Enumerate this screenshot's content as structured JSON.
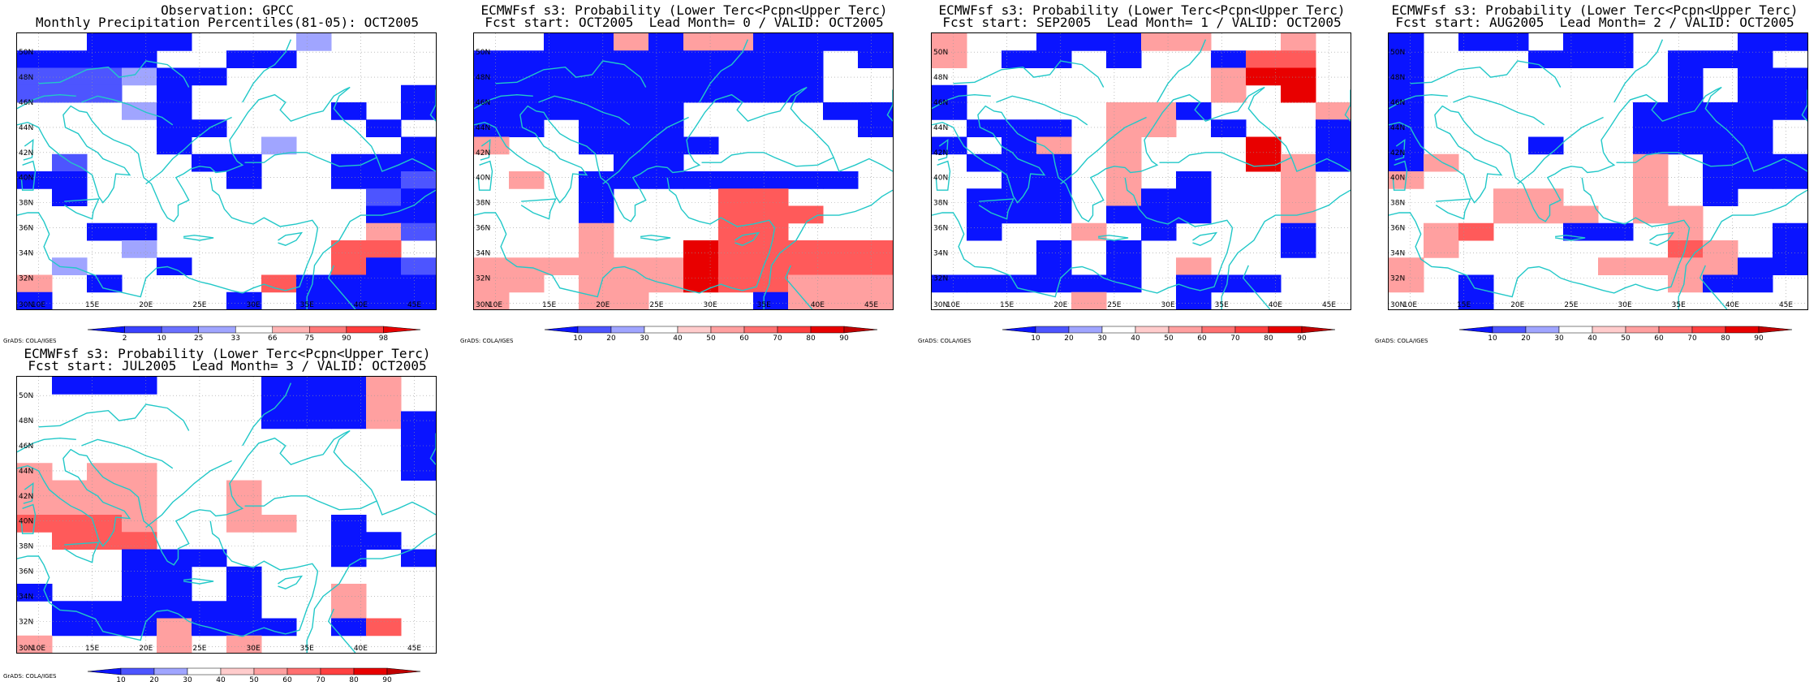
{
  "colors": {
    "coast": "#22c8c8",
    "grid": "#999999",
    "deep_blue": "#0a14ff",
    "mid_blue": "#4d55ff",
    "light_blue": "#a0a5ff",
    "light_red": "#ffa0a0",
    "mid_red": "#ff5a5a",
    "deep_red": "#e80000"
  },
  "axes": {
    "lon_ticks": [
      "10E",
      "15E",
      "20E",
      "25E",
      "30E",
      "35E",
      "40E",
      "45E"
    ],
    "lat_ticks": [
      "30N",
      "32N",
      "34N",
      "36N",
      "38N",
      "40N",
      "42N",
      "44N",
      "46N",
      "48N",
      "50N"
    ]
  },
  "credit_text": "GrADS: COLA/IGES",
  "panels": [
    {
      "id": "obs",
      "title_line1": "Observation: GPCC",
      "title_line2": "Monthly Precipitation Percentiles(81-05): OCT2005",
      "legend_labels": [
        "2",
        "10",
        "25",
        "33",
        "66",
        "75",
        "90",
        "98"
      ],
      "legend_colors": [
        "#0a14ff",
        "#3a42ff",
        "#6a70ff",
        "#a0a5ff",
        "#ffffff",
        "#ffb4b4",
        "#ff7878",
        "#ff3c3c",
        "#e80000"
      ],
      "grid": [
        "004410003000",
        "444400110000",
        "222344000000",
        "222010000001",
        "000340000101",
        "000011000010",
        "000010030001",
        "020004100111",
        "110000100112",
        "010000000021",
        "000000000011",
        "004400000052",
        "000300000660",
        "030040000642",
        "504000064444",
        "400000404444"
      ]
    },
    {
      "id": "lead0",
      "title_line1": "ECMWFsf s3: Probability (Lower Terc<Pcpn<Upper Terc)",
      "title_line2": "Fcst start: OCT2005  Lead Month= 0 / VALID: OCT2005",
      "legend_labels": [
        "10",
        "20",
        "30",
        "40",
        "50",
        "60",
        "70",
        "80",
        "90"
      ],
      "legend_colors": [
        "#0a14ff",
        "#4d55ff",
        "#a0a5ff",
        "#ffffff",
        "#ffcccc",
        "#ffa0a0",
        "#ff7070",
        "#ff4040",
        "#e80000",
        "#c00000"
      ],
      "grid": [
        "004454554444",
        "444444444404",
        "444444444400",
        "444444444400",
        "444444000044",
        "440444000004",
        "500444400000",
        "000044000000",
        "050444444440",
        "000400066000",
        "000400066600",
        "000500066000",
        "000500766666",
        "555555766666",
        "550555766555",
        "500550004555"
      ]
    },
    {
      "id": "lead1",
      "title_line1": "ECMWFsf s3: Probability (Lower Terc<Pcpn<Upper Terc)",
      "title_line2": "Fcst start: SEP2005  Lead Month= 1 / VALID: OCT2005",
      "legend_labels": [
        "10",
        "20",
        "30",
        "40",
        "50",
        "60",
        "70",
        "80",
        "90"
      ],
      "legend_colors": [
        "#0a14ff",
        "#4d55ff",
        "#a0a5ff",
        "#ffffff",
        "#ffcccc",
        "#ffa0a0",
        "#ff7070",
        "#ff4040",
        "#e80000",
        "#c00000"
      ],
      "grid": [
        "500444550050",
        "504404004660",
        "000000005770",
        "400000005070",
        "400005540005",
        "044405504004",
        "404505000704",
        "044405000754",
        "004405040050",
        "044405440050",
        "044404440050",
        "040050400040",
        "000404000040",
        "000404050000",
        "444444044400",
        "000050040000"
      ]
    },
    {
      "id": "lead2",
      "title_line1": "ECMWFsf s3: Probability (Lower Terc<Pcpn<Upper Terc)",
      "title_line2": "Fcst start: AUG2005  Lead Month= 2 / VALID: OCT2005",
      "legend_labels": [
        "10",
        "20",
        "30",
        "40",
        "50",
        "60",
        "70",
        "80",
        "90"
      ],
      "legend_colors": [
        "#0a14ff",
        "#4d55ff",
        "#a0a5ff",
        "#ffffff",
        "#ffcccc",
        "#ffa0a0",
        "#ff7070",
        "#ff4040",
        "#e80000",
        "#c00000"
      ],
      "grid": [
        "404404400044",
        "400044404440",
        "400000004044",
        "400000004044",
        "400000044444",
        "400000044440",
        "400040044440",
        "450000050444",
        "500000050444",
        "000550050400",
        "000555055000",
        "056004405004",
        "050000006504",
        "500000555544",
        "504000005440",
        "004000000000"
      ]
    },
    {
      "id": "lead3",
      "title_line1": "ECMWFsf s3: Probability (Lower Terc<Pcpn<Upper Terc)",
      "title_line2": "Fcst start: JUL2005  Lead Month= 3 / VALID: OCT2005",
      "legend_labels": [
        "10",
        "20",
        "30",
        "40",
        "50",
        "60",
        "70",
        "80",
        "90"
      ],
      "legend_colors": [
        "#0a14ff",
        "#4d55ff",
        "#a0a5ff",
        "#ffffff",
        "#ffcccc",
        "#ffa0a0",
        "#ff7070",
        "#ff4040",
        "#e80000",
        "#c00000"
      ],
      "grid": [
        "044400044450",
        "000000044450",
        "000000044454",
        "000000000004",
        "000000000004",
        "505500000004",
        "555500500000",
        "555500500000",
        "666500550400",
        "066600000440",
        "000444000404",
        "000440400000",
        "400440400500",
        "044444400500",
        "044454440460",
        "500050500000"
      ]
    }
  ]
}
